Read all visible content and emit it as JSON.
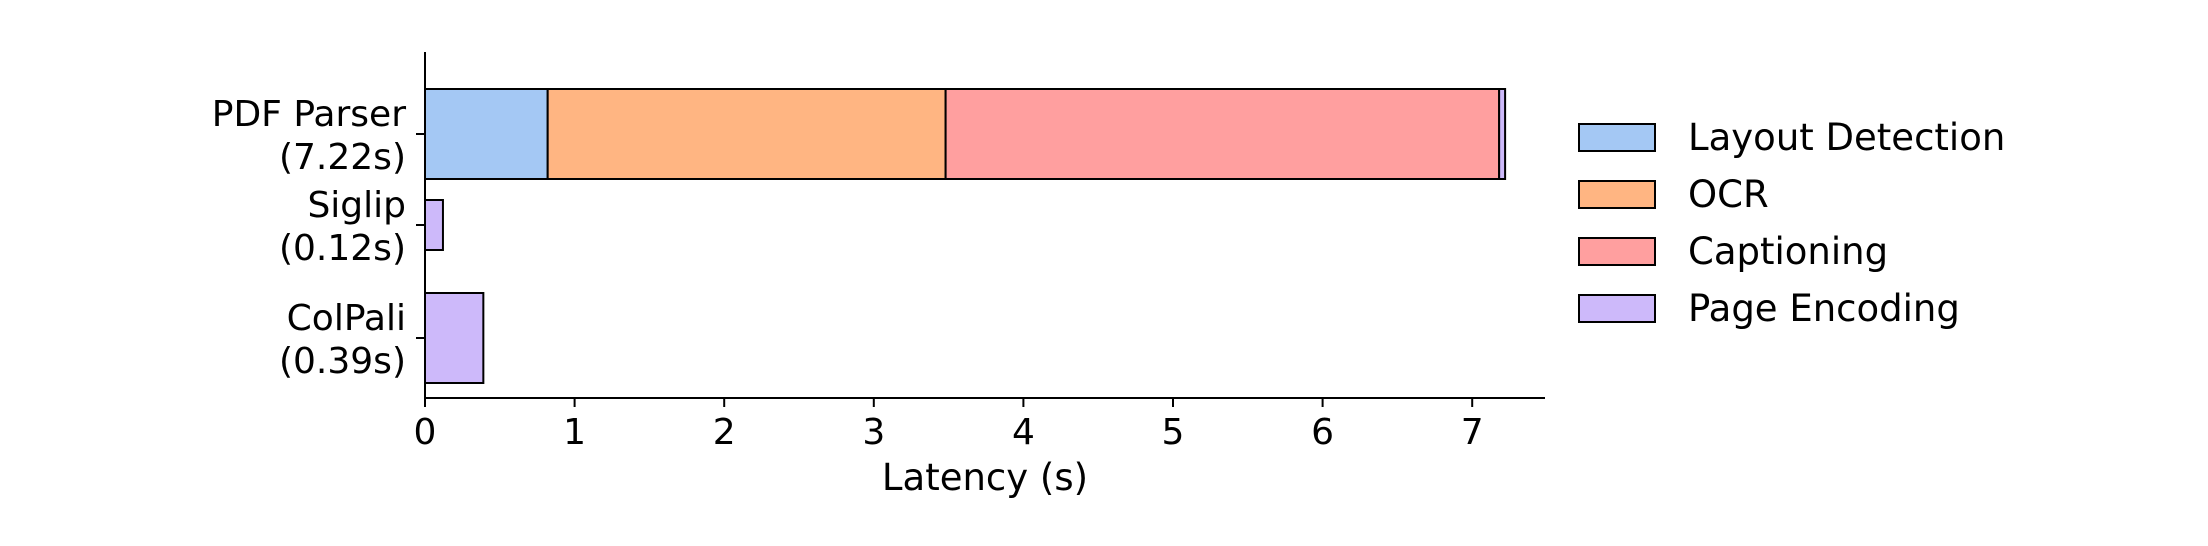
{
  "chart_data": {
    "type": "bar",
    "orientation": "horizontal",
    "stacked": true,
    "xlabel": "Latency (s)",
    "xlim": [
      0,
      7.5
    ],
    "xticks": [
      0,
      1,
      2,
      3,
      4,
      5,
      6,
      7
    ],
    "categories": [
      {
        "name": "PDF Parser",
        "total": "(7.22s)"
      },
      {
        "name": "Siglip",
        "total": "(0.12s)"
      },
      {
        "name": "ColPali",
        "total": "(0.39s)"
      }
    ],
    "series": [
      {
        "name": "Layout Detection",
        "color": "#a4c8f4",
        "values": [
          0.82,
          0,
          0
        ]
      },
      {
        "name": "OCR",
        "color": "#ffb582",
        "values": [
          2.66,
          0,
          0
        ]
      },
      {
        "name": "Captioning",
        "color": "#ff9f9f",
        "values": [
          3.7,
          0,
          0
        ]
      },
      {
        "name": "Page Encoding",
        "color": "#cdb9fa",
        "values": [
          0.04,
          0.12,
          0.39
        ]
      }
    ],
    "legend_position": "right",
    "grid": false
  }
}
